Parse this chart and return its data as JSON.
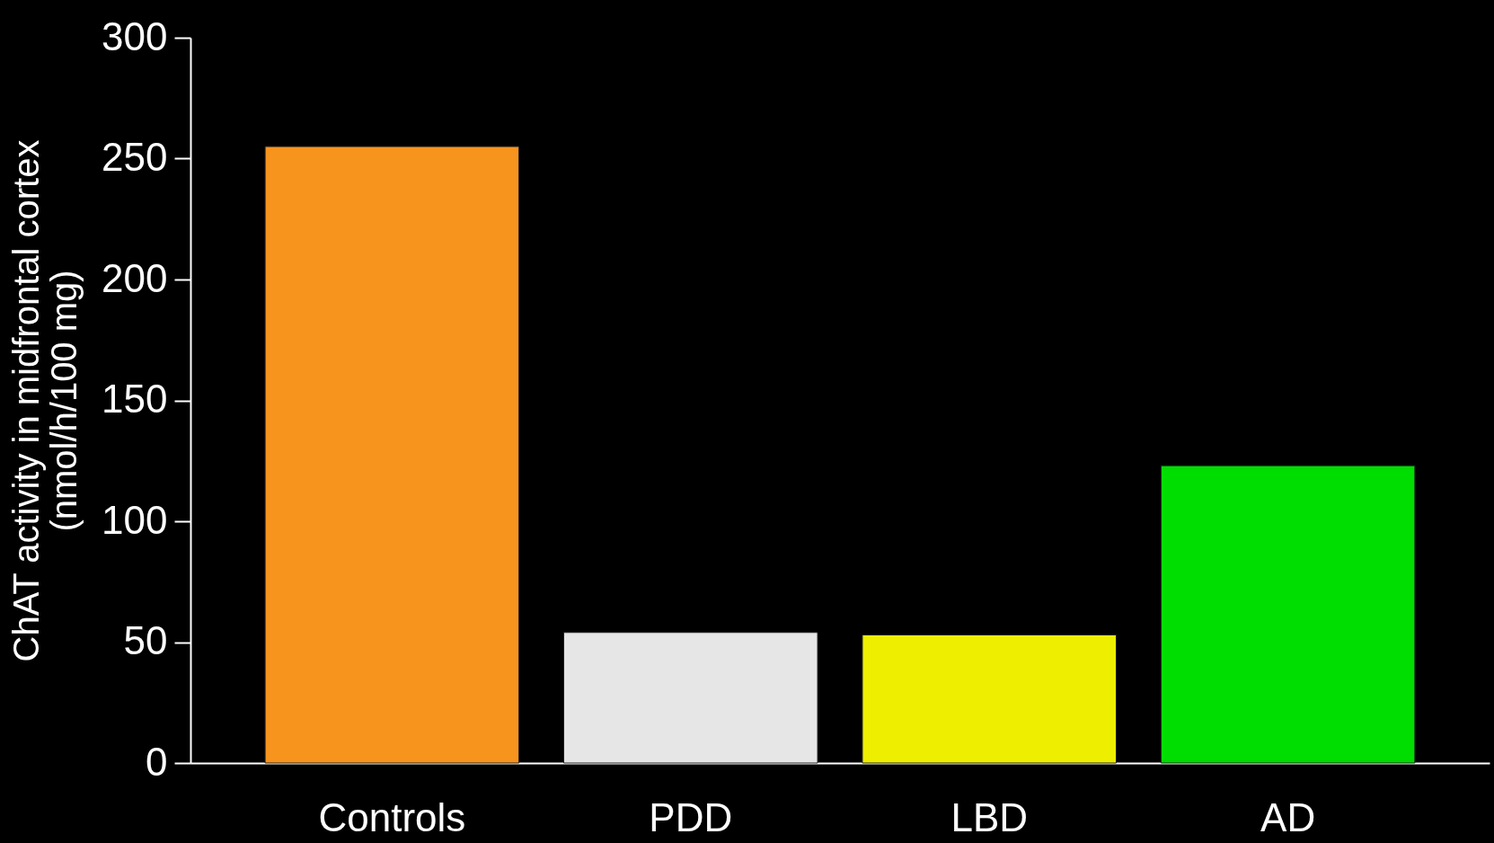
{
  "chart_data": {
    "type": "bar",
    "ylabel": "ChAT activity in midfrontal cortex\n(nmol/h/100 mg)",
    "categories": [
      "Controls",
      "PDD",
      "LBD",
      "AD"
    ],
    "values": [
      255,
      54,
      53,
      123
    ],
    "colors": [
      "#f7941d",
      "#e6e6e6",
      "#eeee00",
      "#00dd00"
    ],
    "ylim": [
      0,
      300
    ],
    "yticks": [
      0,
      50,
      100,
      150,
      200,
      250,
      300
    ],
    "grid": false
  }
}
